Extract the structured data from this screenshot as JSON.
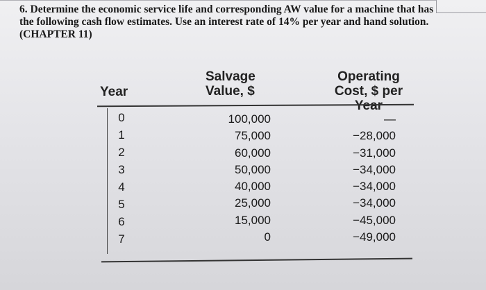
{
  "question": {
    "text": "6. Determine the economic service life and corresponding AW value for a machine that has the following cash flow estimates. Use an interest rate of 14% per year and hand solution. (CHAPTER 11)"
  },
  "table": {
    "headers": {
      "year": "Year",
      "salvage_line1": "Salvage",
      "salvage_line2": "Value, $",
      "operating_line1": "Operating",
      "operating_line2": "Cost, $ per Year"
    },
    "rows": [
      {
        "year": "0",
        "salvage": "100,000",
        "operating": "—"
      },
      {
        "year": "1",
        "salvage": "75,000",
        "operating": "−28,000"
      },
      {
        "year": "2",
        "salvage": "60,000",
        "operating": "−31,000"
      },
      {
        "year": "3",
        "salvage": "50,000",
        "operating": "−34,000"
      },
      {
        "year": "4",
        "salvage": "40,000",
        "operating": "−34,000"
      },
      {
        "year": "5",
        "salvage": "25,000",
        "operating": "−34,000"
      },
      {
        "year": "6",
        "salvage": "15,000",
        "operating": "−45,000"
      },
      {
        "year": "7",
        "salvage": "0",
        "operating": "−49,000"
      }
    ]
  }
}
